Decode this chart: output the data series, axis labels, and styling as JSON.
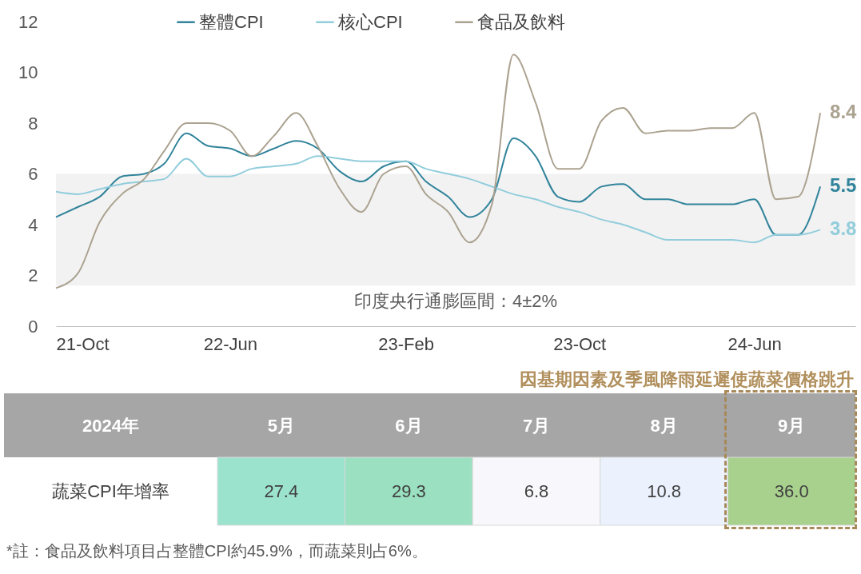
{
  "chart_data": [
    {
      "type": "line",
      "x": [
        "2021-10",
        "2021-11",
        "2021-12",
        "2022-01",
        "2022-02",
        "2022-03",
        "2022-04",
        "2022-05",
        "2022-06",
        "2022-07",
        "2022-08",
        "2022-09",
        "2022-10",
        "2022-11",
        "2022-12",
        "2023-01",
        "2023-02",
        "2023-03",
        "2023-04",
        "2023-05",
        "2023-06",
        "2023-07",
        "2023-08",
        "2023-09",
        "2023-10",
        "2023-11",
        "2023-12",
        "2024-01",
        "2024-02",
        "2024-03",
        "2024-04",
        "2024-05",
        "2024-06",
        "2024-07",
        "2024-08",
        "2024-09"
      ],
      "series": [
        {
          "name": "整體CPI",
          "color": "#31849b",
          "values": [
            4.3,
            4.7,
            5.1,
            5.9,
            6.0,
            6.4,
            7.6,
            7.1,
            7.0,
            6.7,
            7.0,
            7.3,
            7.0,
            6.1,
            5.7,
            6.3,
            6.5,
            5.7,
            5.1,
            4.3,
            5.0,
            7.4,
            6.7,
            5.1,
            4.9,
            5.5,
            5.6,
            5.0,
            5.0,
            4.8,
            4.8,
            4.8,
            5.0,
            3.6,
            3.6,
            5.5
          ],
          "value_labels": [
            null,
            null,
            null,
            null,
            null,
            null,
            null,
            null,
            null,
            null,
            null,
            null,
            null,
            null,
            null,
            null,
            null,
            null,
            null,
            null,
            null,
            null,
            null,
            null,
            null,
            null,
            null,
            null,
            null,
            null,
            null,
            null,
            null,
            null,
            null,
            "5.5"
          ]
        },
        {
          "name": "核心CPI",
          "color": "#92cddc",
          "values": [
            5.3,
            5.2,
            5.4,
            5.6,
            5.7,
            5.8,
            6.6,
            5.9,
            5.9,
            6.2,
            6.3,
            6.4,
            6.7,
            6.6,
            6.5,
            6.5,
            6.5,
            6.2,
            6.0,
            5.8,
            5.5,
            5.2,
            5.0,
            4.7,
            4.5,
            4.2,
            4.0,
            3.7,
            3.4,
            3.4,
            3.4,
            3.4,
            3.3,
            3.6,
            3.6,
            3.8
          ],
          "value_labels": [
            null,
            null,
            null,
            null,
            null,
            null,
            null,
            null,
            null,
            null,
            null,
            null,
            null,
            null,
            null,
            null,
            null,
            null,
            null,
            null,
            null,
            null,
            null,
            null,
            null,
            null,
            null,
            null,
            null,
            null,
            null,
            null,
            null,
            null,
            null,
            "3.8"
          ]
        },
        {
          "name": "食品及飲料",
          "color": "#aba290",
          "values": [
            1.5,
            2.1,
            4.1,
            5.2,
            5.8,
            6.9,
            8.0,
            8.0,
            7.7,
            6.7,
            7.5,
            8.4,
            7.1,
            5.4,
            4.5,
            6.0,
            6.3,
            5.2,
            4.5,
            3.3,
            4.8,
            10.7,
            8.8,
            6.2,
            6.2,
            8.1,
            8.6,
            7.6,
            7.7,
            7.7,
            7.8,
            7.8,
            8.4,
            5.0,
            5.1,
            8.4
          ],
          "value_labels": [
            null,
            null,
            null,
            null,
            null,
            null,
            null,
            null,
            null,
            null,
            null,
            null,
            null,
            null,
            null,
            null,
            null,
            null,
            null,
            null,
            null,
            null,
            null,
            null,
            null,
            null,
            null,
            null,
            null,
            null,
            null,
            null,
            null,
            null,
            null,
            "8.4"
          ]
        }
      ],
      "xlim": [
        "2021-10",
        "2024-10-20"
      ],
      "xticks": [
        {
          "value": "2021-10",
          "label": "21-Oct"
        },
        {
          "value": "2022-06",
          "label": "22-Jun"
        },
        {
          "value": "2023-02",
          "label": "23-Feb"
        },
        {
          "value": "2023-10",
          "label": "23-Oct"
        },
        {
          "value": "2024-06",
          "label": "24-Jun"
        }
      ],
      "ylim": [
        0,
        12
      ],
      "yticks": [
        0,
        2,
        4,
        6,
        8,
        10,
        12
      ],
      "bands": [
        {
          "axis": "y",
          "from": 1.6,
          "to": 6,
          "label": "印度央行通膨區間：4±2%",
          "color": "#f2f2f2"
        }
      ],
      "legend": "top"
    },
    {
      "type": "heatmap",
      "categories": [
        "5月",
        "6月",
        "7月",
        "8月",
        "9月"
      ],
      "y_categories": [
        "蔬菜CPI年增率"
      ],
      "cells": [
        [
          27.4,
          29.3,
          6.8,
          10.8,
          36.0
        ]
      ],
      "cell_labels": [
        [
          "27.4",
          "29.3",
          "6.8",
          "10.8",
          "36.0"
        ]
      ],
      "ylabel": "2024年",
      "annotations": [
        "因基期因素及季風降雨延遲使蔬菜價格跳升",
        "*註：食品及飲料項目占整體CPI約45.9%，而蔬菜則占6%。"
      ]
    }
  ]
}
